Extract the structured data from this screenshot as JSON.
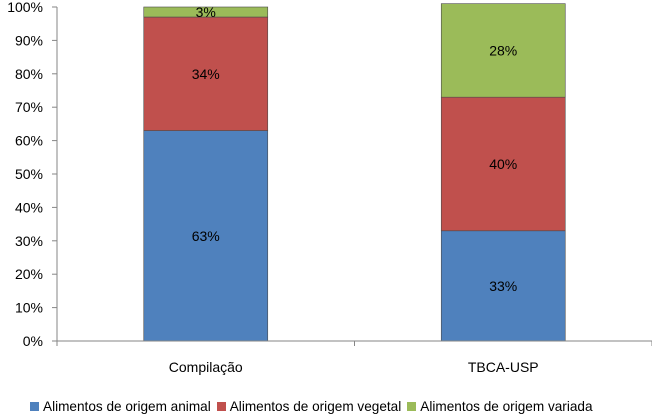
{
  "chart_data": {
    "type": "bar",
    "stacked": true,
    "percent": true,
    "categories": [
      "Compilação",
      "TBCA-USP"
    ],
    "series": [
      {
        "name": "Alimentos de origem animal",
        "color": "#4F81BD",
        "values": [
          63,
          33
        ],
        "labels": [
          "63%",
          "33%"
        ]
      },
      {
        "name": "Alimentos de origem vegetal",
        "color": "#C0504D",
        "values": [
          34,
          40
        ],
        "labels": [
          "34%",
          "40%"
        ]
      },
      {
        "name": "Alimentos de origem variada",
        "color": "#9BBB59",
        "values": [
          3,
          28
        ],
        "labels": [
          "3%",
          "28%"
        ]
      }
    ],
    "ylim": [
      0,
      100
    ],
    "yticks": [
      "0%",
      "10%",
      "20%",
      "30%",
      "40%",
      "50%",
      "60%",
      "70%",
      "80%",
      "90%",
      "100%"
    ],
    "grid": false,
    "legend": "bottom"
  }
}
